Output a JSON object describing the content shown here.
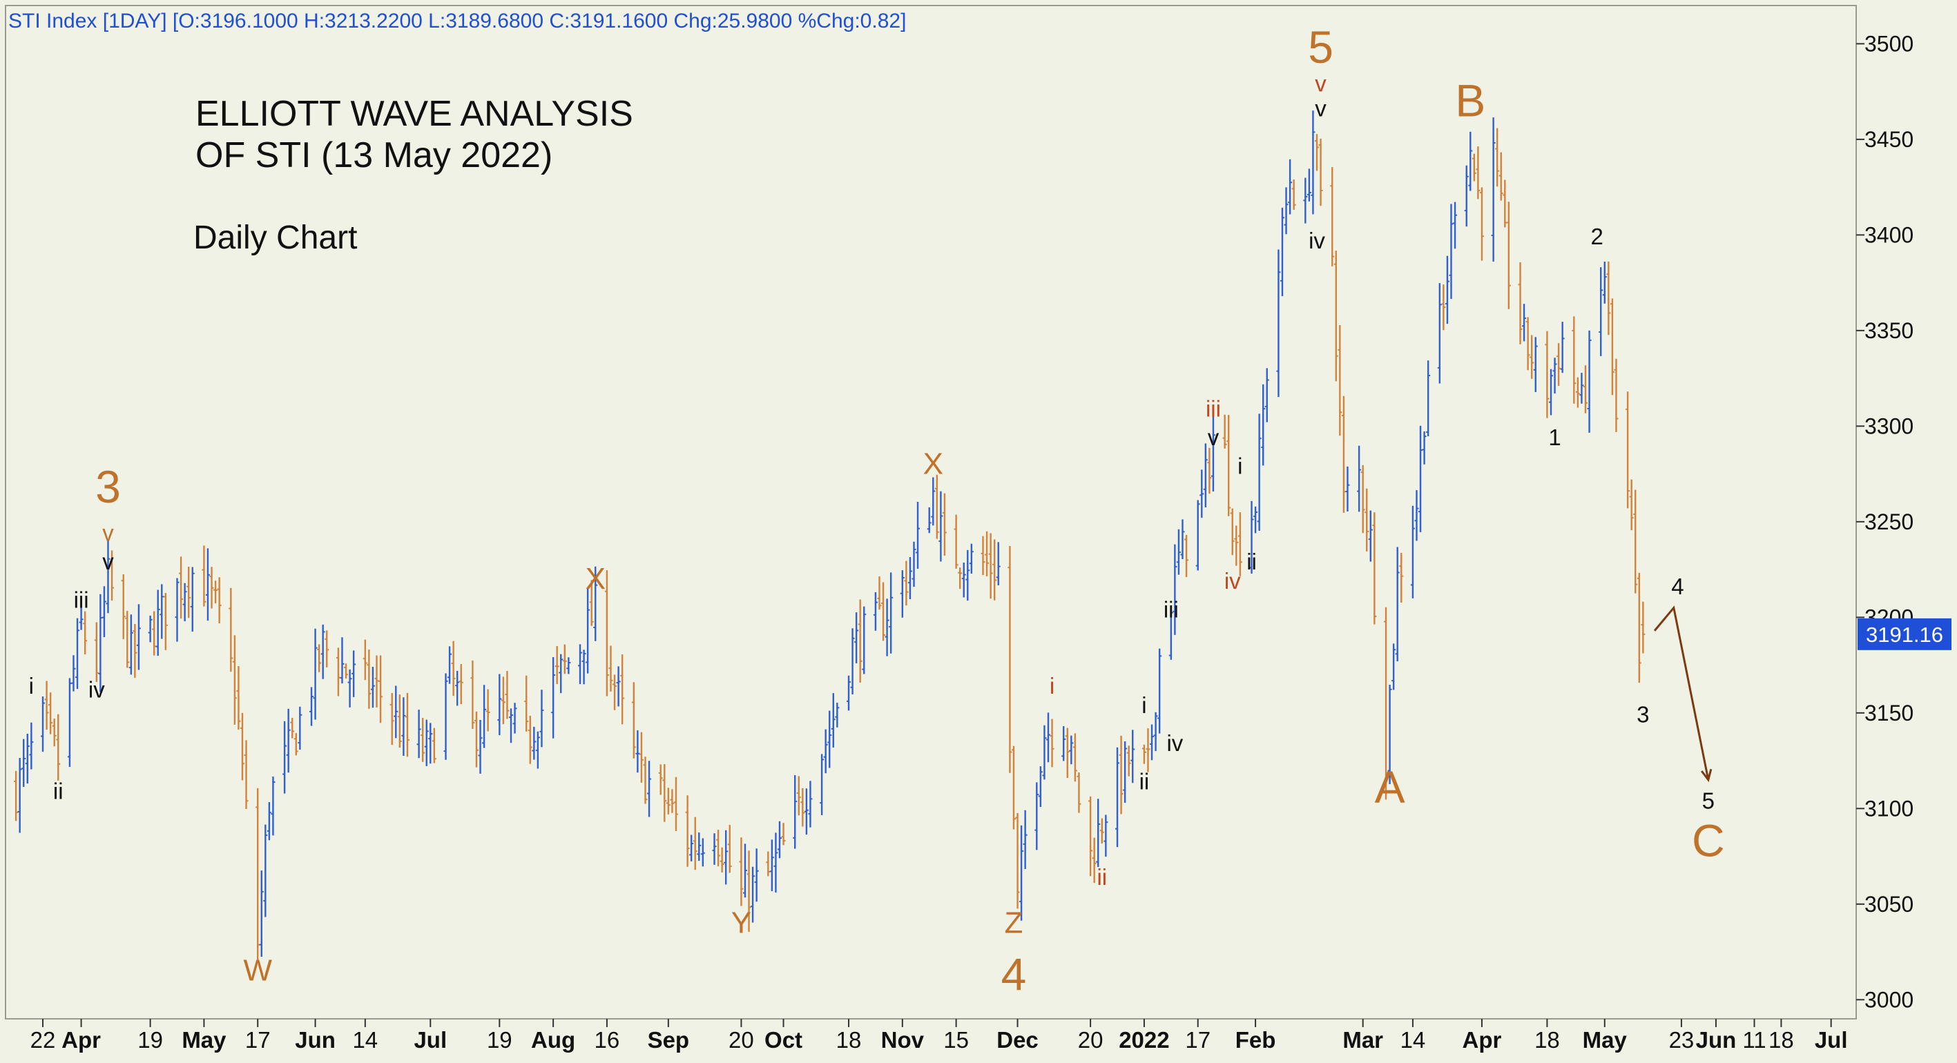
{
  "header": {
    "ticker_line": "STI Index [1DAY] [O:3196.1000 H:3213.2200 L:3189.6800 C:3191.1600 Chg:25.9800 %Chg:0.82]"
  },
  "annotations": {
    "title_line1": "ELLIOTT WAVE ANALYSIS",
    "title_line2": "OF STI (13 May 2022)",
    "subtitle": "Daily Chart"
  },
  "price_badge": "3191.16",
  "colors": {
    "background": "#f0f2e6",
    "up_bar": "#2f5fd0",
    "down_bar": "#d2823a",
    "wave_orange": "#c0712a",
    "wave_red": "#c0471f",
    "header_text": "#1f4fd6",
    "badge_bg": "#1f4fd6",
    "projection": "#7a3a12"
  },
  "chart_data": {
    "type": "ohlc",
    "title": "ELLIOTT WAVE ANALYSIS OF STI (13 May 2022)",
    "subtitle": "Daily Chart",
    "interval": "1DAY",
    "last_close": 3191.16,
    "ylim": [
      2990,
      3520
    ],
    "y_ticks": [
      3000,
      3050,
      3100,
      3150,
      3200,
      3250,
      3300,
      3350,
      3400,
      3450,
      3500
    ],
    "y_tick_labels": [
      "3000",
      "3050",
      "3100",
      "3150",
      "3200",
      "3250",
      "3300",
      "3350",
      "3400",
      "3450",
      "3500"
    ],
    "x_ticks": [
      {
        "date": "2021-03-22",
        "label": "22",
        "bold": false
      },
      {
        "date": "2021-04-01",
        "label": "Apr",
        "bold": true
      },
      {
        "date": "2021-04-19",
        "label": "19",
        "bold": false
      },
      {
        "date": "2021-05-03",
        "label": "May",
        "bold": true
      },
      {
        "date": "2021-05-17",
        "label": "17",
        "bold": false
      },
      {
        "date": "2021-06-01",
        "label": "Jun",
        "bold": true
      },
      {
        "date": "2021-06-14",
        "label": "14",
        "bold": false
      },
      {
        "date": "2021-07-01",
        "label": "Jul",
        "bold": true
      },
      {
        "date": "2021-07-19",
        "label": "19",
        "bold": false
      },
      {
        "date": "2021-08-02",
        "label": "Aug",
        "bold": true
      },
      {
        "date": "2021-08-16",
        "label": "16",
        "bold": false
      },
      {
        "date": "2021-09-01",
        "label": "Sep",
        "bold": true
      },
      {
        "date": "2021-09-20",
        "label": "20",
        "bold": false
      },
      {
        "date": "2021-10-01",
        "label": "Oct",
        "bold": true
      },
      {
        "date": "2021-10-18",
        "label": "18",
        "bold": false
      },
      {
        "date": "2021-11-01",
        "label": "Nov",
        "bold": true
      },
      {
        "date": "2021-11-15",
        "label": "15",
        "bold": false
      },
      {
        "date": "2021-12-01",
        "label": "Dec",
        "bold": true
      },
      {
        "date": "2021-12-20",
        "label": "20",
        "bold": false
      },
      {
        "date": "2022-01-03",
        "label": "2022",
        "bold": true
      },
      {
        "date": "2022-01-17",
        "label": "17",
        "bold": false
      },
      {
        "date": "2022-02-01",
        "label": "Feb",
        "bold": true
      },
      {
        "date": "2022-03-01",
        "label": "Mar",
        "bold": true
      },
      {
        "date": "2022-03-14",
        "label": "14",
        "bold": false
      },
      {
        "date": "2022-04-01",
        "label": "Apr",
        "bold": true
      },
      {
        "date": "2022-04-18",
        "label": "18",
        "bold": false
      },
      {
        "date": "2022-05-03",
        "label": "May",
        "bold": true
      },
      {
        "date": "2022-05-23",
        "label": "23",
        "bold": false
      },
      {
        "date": "2022-06-01",
        "label": "Jun",
        "bold": true
      },
      {
        "date": "2022-06-11",
        "label": "11",
        "bold": false
      },
      {
        "date": "2022-06-18",
        "label": "18",
        "bold": false
      },
      {
        "date": "2022-07-01",
        "label": "Jul",
        "bold": true
      }
    ],
    "price_path": [
      [
        "2021-03-15",
        3110
      ],
      [
        "2021-03-22",
        3145
      ],
      [
        "2021-03-26",
        3125
      ],
      [
        "2021-04-01",
        3195
      ],
      [
        "2021-04-05",
        3175
      ],
      [
        "2021-04-08",
        3220
      ],
      [
        "2021-04-14",
        3180
      ],
      [
        "2021-04-20",
        3195
      ],
      [
        "2021-04-26",
        3215
      ],
      [
        "2021-05-01",
        3225
      ],
      [
        "2021-05-06",
        3205
      ],
      [
        "2021-05-11",
        3165
      ],
      [
        "2021-05-17",
        3030
      ],
      [
        "2021-05-20",
        3105
      ],
      [
        "2021-05-27",
        3140
      ],
      [
        "2021-06-03",
        3185
      ],
      [
        "2021-06-10",
        3170
      ],
      [
        "2021-06-18",
        3160
      ],
      [
        "2021-06-25",
        3135
      ],
      [
        "2021-07-01",
        3130
      ],
      [
        "2021-07-06",
        3170
      ],
      [
        "2021-07-12",
        3140
      ],
      [
        "2021-07-19",
        3150
      ],
      [
        "2021-07-26",
        3135
      ],
      [
        "2021-08-02",
        3165
      ],
      [
        "2021-08-09",
        3185
      ],
      [
        "2021-08-13",
        3205
      ],
      [
        "2021-08-18",
        3165
      ],
      [
        "2021-08-24",
        3120
      ],
      [
        "2021-08-31",
        3105
      ],
      [
        "2021-09-07",
        3080
      ],
      [
        "2021-09-13",
        3090
      ],
      [
        "2021-09-20",
        3055
      ],
      [
        "2021-09-27",
        3065
      ],
      [
        "2021-10-01",
        3080
      ],
      [
        "2021-10-07",
        3110
      ],
      [
        "2021-10-13",
        3140
      ],
      [
        "2021-10-19",
        3185
      ],
      [
        "2021-10-27",
        3200
      ],
      [
        "2021-11-03",
        3225
      ],
      [
        "2021-11-09",
        3265
      ],
      [
        "2021-11-12",
        3235
      ],
      [
        "2021-11-19",
        3230
      ],
      [
        "2021-11-26",
        3225
      ],
      [
        "2021-11-29",
        3130
      ],
      [
        "2021-12-01",
        3050
      ],
      [
        "2021-12-03",
        3085
      ],
      [
        "2021-12-08",
        3140
      ],
      [
        "2021-12-13",
        3145
      ],
      [
        "2021-12-17",
        3105
      ],
      [
        "2021-12-20",
        3075
      ],
      [
        "2021-12-24",
        3100
      ],
      [
        "2021-12-30",
        3125
      ],
      [
        "2022-01-04",
        3120
      ],
      [
        "2022-01-07",
        3180
      ],
      [
        "2022-01-12",
        3230
      ],
      [
        "2022-01-18",
        3260
      ],
      [
        "2022-01-21",
        3295
      ],
      [
        "2022-01-24",
        3285
      ],
      [
        "2022-01-27",
        3235
      ],
      [
        "2022-02-01",
        3260
      ],
      [
        "2022-02-04",
        3330
      ],
      [
        "2022-02-08",
        3400
      ],
      [
        "2022-02-10",
        3430
      ],
      [
        "2022-02-14",
        3410
      ],
      [
        "2022-02-16",
        3455
      ],
      [
        "2022-02-18",
        3415
      ],
      [
        "2022-02-21",
        3390
      ],
      [
        "2022-02-24",
        3260
      ],
      [
        "2022-02-28",
        3275
      ],
      [
        "2022-03-03",
        3240
      ],
      [
        "2022-03-07",
        3130
      ],
      [
        "2022-03-10",
        3220
      ],
      [
        "2022-03-15",
        3260
      ],
      [
        "2022-03-18",
        3330
      ],
      [
        "2022-03-22",
        3360
      ],
      [
        "2022-03-25",
        3420
      ],
      [
        "2022-03-29",
        3445
      ],
      [
        "2022-04-01",
        3410
      ],
      [
        "2022-04-04",
        3440
      ],
      [
        "2022-04-08",
        3380
      ],
      [
        "2022-04-12",
        3345
      ],
      [
        "2022-04-18",
        3320
      ],
      [
        "2022-04-22",
        3345
      ],
      [
        "2022-04-27",
        3310
      ],
      [
        "2022-05-03",
        3380
      ],
      [
        "2022-05-06",
        3300
      ],
      [
        "2022-05-10",
        3245
      ],
      [
        "2022-05-12",
        3170
      ],
      [
        "2022-05-13",
        3191.16
      ]
    ],
    "wave_labels": [
      {
        "text": "3",
        "date": "2021-04-08",
        "price": 3260,
        "size": "large",
        "color": "orange"
      },
      {
        "text": "v",
        "date": "2021-04-08",
        "price": 3240,
        "size": "small",
        "color": "orange"
      },
      {
        "text": "v",
        "date": "2021-04-08",
        "price": 3225,
        "size": "small",
        "color": "black"
      },
      {
        "text": "iii",
        "date": "2021-04-01",
        "price": 3205,
        "size": "small",
        "color": "black"
      },
      {
        "text": "iv",
        "date": "2021-04-05",
        "price": 3158,
        "size": "small",
        "color": "black"
      },
      {
        "text": "i",
        "date": "2021-03-19",
        "price": 3160,
        "size": "small",
        "color": "black"
      },
      {
        "text": "ii",
        "date": "2021-03-26",
        "price": 3105,
        "size": "small",
        "color": "black"
      },
      {
        "text": "W",
        "date": "2021-05-17",
        "price": 3010,
        "size": "medium",
        "color": "orange"
      },
      {
        "text": "X",
        "date": "2021-08-13",
        "price": 3215,
        "size": "medium",
        "color": "orange"
      },
      {
        "text": "Y",
        "date": "2021-09-20",
        "price": 3035,
        "size": "medium",
        "color": "orange"
      },
      {
        "text": "X",
        "date": "2021-11-09",
        "price": 3275,
        "size": "medium",
        "color": "orange"
      },
      {
        "text": "Z",
        "date": "2021-11-30",
        "price": 3035,
        "size": "medium",
        "color": "orange"
      },
      {
        "text": "4",
        "date": "2021-11-30",
        "price": 3005,
        "size": "large",
        "color": "orange"
      },
      {
        "text": "i",
        "date": "2021-12-10",
        "price": 3160,
        "size": "small",
        "color": "red"
      },
      {
        "text": "ii",
        "date": "2021-12-23",
        "price": 3060,
        "size": "small",
        "color": "red"
      },
      {
        "text": "i",
        "date": "2022-01-03",
        "price": 3150,
        "size": "small",
        "color": "black"
      },
      {
        "text": "ii",
        "date": "2022-01-03",
        "price": 3110,
        "size": "small",
        "color": "black"
      },
      {
        "text": "iii",
        "date": "2022-01-10",
        "price": 3200,
        "size": "small",
        "color": "black"
      },
      {
        "text": "iv",
        "date": "2022-01-11",
        "price": 3130,
        "size": "small",
        "color": "black"
      },
      {
        "text": "iii",
        "date": "2022-01-21",
        "price": 3305,
        "size": "small",
        "color": "red"
      },
      {
        "text": "v",
        "date": "2022-01-21",
        "price": 3290,
        "size": "small",
        "color": "black"
      },
      {
        "text": "i",
        "date": "2022-01-28",
        "price": 3275,
        "size": "small",
        "color": "black"
      },
      {
        "text": "iv",
        "date": "2022-01-26",
        "price": 3215,
        "size": "small",
        "color": "red"
      },
      {
        "text": "ii",
        "date": "2022-01-31",
        "price": 3225,
        "size": "small",
        "color": "black"
      },
      {
        "text": "5",
        "date": "2022-02-18",
        "price": 3490,
        "size": "large",
        "color": "orange"
      },
      {
        "text": "v",
        "date": "2022-02-18",
        "price": 3475,
        "size": "small",
        "color": "red"
      },
      {
        "text": "v",
        "date": "2022-02-18",
        "price": 3462,
        "size": "small",
        "color": "black"
      },
      {
        "text": "iv",
        "date": "2022-02-17",
        "price": 3393,
        "size": "small",
        "color": "black"
      },
      {
        "text": "A",
        "date": "2022-03-08",
        "price": 3103,
        "size": "large",
        "color": "orange"
      },
      {
        "text": "B",
        "date": "2022-03-29",
        "price": 3462,
        "size": "large",
        "color": "orange"
      },
      {
        "text": "1",
        "date": "2022-04-20",
        "price": 3290,
        "size": "small",
        "color": "black"
      },
      {
        "text": "2",
        "date": "2022-05-01",
        "price": 3395,
        "size": "small",
        "color": "black"
      },
      {
        "text": "3",
        "date": "2022-05-13",
        "price": 3145,
        "size": "small",
        "color": "black"
      },
      {
        "text": "4",
        "date": "2022-05-22",
        "price": 3212,
        "size": "small",
        "color": "black"
      },
      {
        "text": "5",
        "date": "2022-05-30",
        "price": 3100,
        "size": "small",
        "color": "black"
      },
      {
        "text": "C",
        "date": "2022-05-30",
        "price": 3075,
        "size": "large",
        "color": "orange"
      }
    ],
    "projection": [
      [
        "2022-05-16",
        3193
      ],
      [
        "2022-05-21",
        3205
      ],
      [
        "2022-05-30",
        3115
      ]
    ],
    "grid": false
  }
}
